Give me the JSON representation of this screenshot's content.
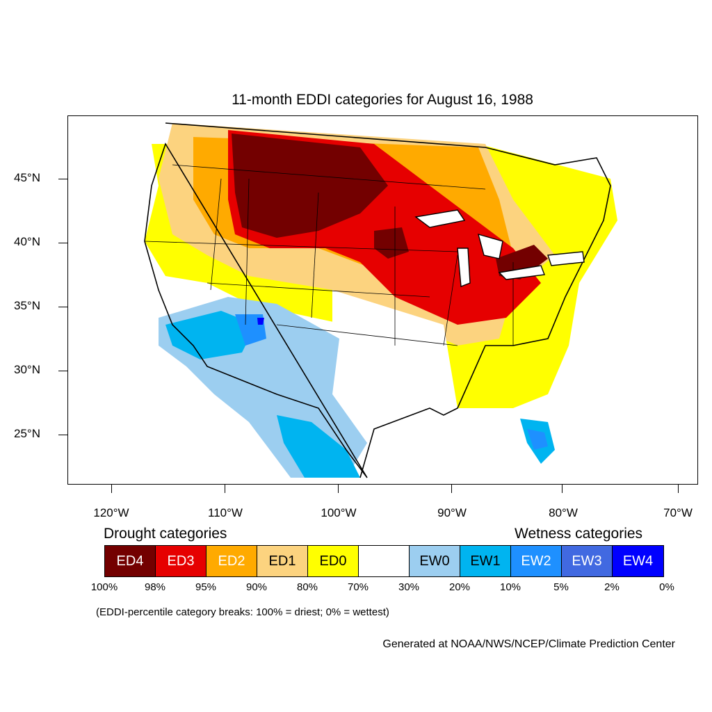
{
  "title": "11-month EDDI categories for August 16, 1988",
  "map": {
    "lat_labels": [
      "45°N",
      "40°N",
      "35°N",
      "30°N",
      "25°N"
    ],
    "lon_labels": [
      "120°W",
      "110°W",
      "100°W",
      "90°W",
      "80°W",
      "70°W"
    ],
    "drought_header": "Drought categories",
    "wetness_header": "Wetness categories",
    "categories": [
      {
        "label": "ED4",
        "color": "#730000",
        "text_color": "#ffffff"
      },
      {
        "label": "ED3",
        "color": "#e60000",
        "text_color": "#ffffff"
      },
      {
        "label": "ED2",
        "color": "#ffaa00",
        "text_color": "#ffffff"
      },
      {
        "label": "ED1",
        "color": "#fcd37f",
        "text_color": "#000000"
      },
      {
        "label": "ED0",
        "color": "#ffff00",
        "text_color": "#000000"
      },
      {
        "label": "",
        "color": "#ffffff",
        "text_color": "#000000"
      },
      {
        "label": "EW0",
        "color": "#9ccef0",
        "text_color": "#000000"
      },
      {
        "label": "EW1",
        "color": "#00b4f0",
        "text_color": "#000000"
      },
      {
        "label": "EW2",
        "color": "#1e90ff",
        "text_color": "#ffffff"
      },
      {
        "label": "EW3",
        "color": "#4169e1",
        "text_color": "#ffffff"
      },
      {
        "label": "EW4",
        "color": "#0000ff",
        "text_color": "#ffffff"
      }
    ],
    "percent_breaks": [
      "100%",
      "98%",
      "95%",
      "90%",
      "80%",
      "70%",
      "30%",
      "20%",
      "10%",
      "5%",
      "2%",
      "0%"
    ],
    "note": "(EDDI-percentile category breaks: 100% = driest; 0% = wettest)",
    "credit": "Generated at NOAA/NWS/NCEP/Climate Prediction Center"
  }
}
